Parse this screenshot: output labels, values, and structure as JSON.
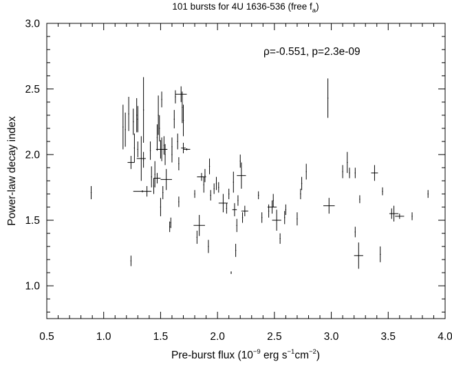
{
  "chart_data": {
    "type": "scatter",
    "title": {
      "main": "101 bursts for 4U 1636-536 (free f",
      "sub": "a",
      "close": ")"
    },
    "xlabel": {
      "pre": "Pre-burst flux (10",
      "sup1": "−9",
      "mid1": " erg s",
      "sup2": "−1",
      "mid2": "cm",
      "sup3": "−2",
      "post": ")"
    },
    "ylabel": "Power-law decay index",
    "annotation": "ρ=-0.551, p=2.3e-09",
    "xlim": [
      0.5,
      4.0
    ],
    "ylim": [
      0.75,
      3.0
    ],
    "x_ticks": [
      "0.5",
      "1.0",
      "1.5",
      "2.0",
      "2.5",
      "3.0",
      "3.5",
      "4.0"
    ],
    "y_ticks": [
      "1.0",
      "1.5",
      "2.0",
      "2.5",
      "3.0"
    ],
    "points": [
      [
        0.89,
        1.71,
        0.0,
        0.05
      ],
      [
        1.17,
        2.21,
        0.0,
        0.17
      ],
      [
        1.19,
        2.19,
        0.0,
        0.13
      ],
      [
        1.22,
        2.31,
        0.0,
        0.13
      ],
      [
        1.24,
        1.94,
        0.03,
        0.05
      ],
      [
        1.24,
        1.19,
        0.0,
        0.04
      ],
      [
        1.26,
        2.25,
        0.0,
        0.1
      ],
      [
        1.27,
        2.05,
        0.0,
        0.11
      ],
      [
        1.29,
        2.3,
        0.0,
        0.13
      ],
      [
        1.3,
        2.27,
        0.0,
        0.1
      ],
      [
        1.3,
        2.04,
        0.0,
        0.06
      ],
      [
        1.33,
        1.97,
        0.04,
        0.17
      ],
      [
        1.35,
        1.96,
        0.0,
        0.06
      ],
      [
        1.34,
        1.72,
        0.08,
        0.0
      ],
      [
        1.35,
        2.34,
        0.0,
        0.25
      ],
      [
        1.38,
        1.72,
        0.0,
        0.04
      ],
      [
        1.41,
        2.03,
        0.0,
        0.07
      ],
      [
        1.42,
        1.83,
        0.0,
        0.08
      ],
      [
        1.44,
        1.76,
        0.0,
        0.06
      ],
      [
        1.45,
        1.85,
        0.0,
        0.1
      ],
      [
        1.47,
        2.13,
        0.0,
        0.1
      ],
      [
        1.47,
        1.82,
        0.03,
        0.04
      ],
      [
        1.48,
        2.3,
        0.0,
        0.15
      ],
      [
        1.49,
        2.2,
        0.0,
        0.1
      ],
      [
        1.5,
        2.04,
        0.0,
        0.07
      ],
      [
        1.5,
        1.6,
        0.0,
        0.07
      ],
      [
        1.51,
        2.04,
        0.05,
        0.09
      ],
      [
        1.51,
        2.42,
        0.0,
        0.06
      ],
      [
        1.52,
        1.71,
        0.0,
        0.05
      ],
      [
        1.53,
        2.07,
        0.0,
        0.07
      ],
      [
        1.54,
        2.0,
        0.0,
        0.08
      ],
      [
        1.55,
        1.81,
        0.05,
        0.08
      ],
      [
        1.58,
        1.45,
        0.0,
        0.04
      ],
      [
        1.59,
        1.48,
        0.0,
        0.04
      ],
      [
        1.6,
        2.06,
        0.0,
        0.07
      ],
      [
        1.6,
        2.0,
        0.0,
        0.06
      ],
      [
        1.62,
        2.27,
        0.0,
        0.07
      ],
      [
        1.63,
        2.44,
        0.0,
        0.05
      ],
      [
        1.65,
        2.1,
        0.0,
        0.06
      ],
      [
        1.66,
        1.93,
        0.0,
        0.05
      ],
      [
        1.66,
        1.64,
        0.0,
        0.04
      ],
      [
        1.68,
        2.46,
        0.05,
        0.06
      ],
      [
        1.69,
        2.36,
        0.0,
        0.12
      ],
      [
        1.7,
        2.26,
        0.0,
        0.12
      ],
      [
        1.7,
        2.05,
        0.02,
        0.04
      ],
      [
        1.73,
        2.04,
        0.03,
        0.0
      ],
      [
        1.8,
        1.7,
        0.0,
        0.03
      ],
      [
        1.82,
        1.37,
        0.0,
        0.05
      ],
      [
        1.84,
        1.46,
        0.05,
        0.08
      ],
      [
        1.86,
        1.83,
        0.04,
        0.03
      ],
      [
        1.88,
        1.77,
        0.0,
        0.06
      ],
      [
        1.89,
        1.84,
        0.0,
        0.05
      ],
      [
        1.92,
        1.3,
        0.0,
        0.05
      ],
      [
        1.93,
        1.91,
        0.0,
        0.06
      ],
      [
        1.94,
        1.69,
        0.0,
        0.04
      ],
      [
        1.97,
        1.74,
        0.0,
        0.04
      ],
      [
        1.99,
        1.78,
        0.0,
        0.05
      ],
      [
        2.01,
        1.75,
        0.0,
        0.04
      ],
      [
        2.05,
        1.63,
        0.04,
        0.07
      ],
      [
        2.08,
        1.59,
        0.0,
        0.04
      ],
      [
        2.1,
        1.7,
        0.0,
        0.04
      ],
      [
        2.12,
        1.1,
        0.0,
        0.01
      ],
      [
        2.14,
        1.79,
        0.0,
        0.08
      ],
      [
        2.15,
        1.58,
        0.02,
        0.05
      ],
      [
        2.16,
        1.27,
        0.0,
        0.05
      ],
      [
        2.17,
        1.46,
        0.0,
        0.05
      ],
      [
        2.18,
        1.65,
        0.0,
        0.04
      ],
      [
        2.2,
        1.95,
        0.0,
        0.05
      ],
      [
        2.21,
        1.84,
        0.04,
        0.1
      ],
      [
        2.22,
        1.52,
        0.0,
        0.04
      ],
      [
        2.24,
        1.57,
        0.03,
        0.04
      ],
      [
        2.36,
        1.69,
        0.0,
        0.03
      ],
      [
        2.39,
        1.52,
        0.0,
        0.04
      ],
      [
        2.45,
        1.57,
        0.0,
        0.05
      ],
      [
        2.48,
        1.6,
        0.04,
        0.05
      ],
      [
        2.49,
        1.65,
        0.0,
        0.05
      ],
      [
        2.52,
        1.5,
        0.04,
        0.08
      ],
      [
        2.55,
        1.36,
        0.0,
        0.04
      ],
      [
        2.59,
        1.52,
        0.0,
        0.05
      ],
      [
        2.6,
        1.58,
        0.0,
        0.04
      ],
      [
        2.7,
        1.51,
        0.0,
        0.05
      ],
      [
        2.73,
        1.7,
        0.0,
        0.04
      ],
      [
        2.74,
        1.78,
        0.0,
        0.05
      ],
      [
        2.78,
        1.87,
        0.0,
        0.06
      ],
      [
        2.97,
        2.43,
        0.0,
        0.15
      ],
      [
        2.98,
        1.61,
        0.05,
        0.06
      ],
      [
        3.1,
        1.87,
        0.0,
        0.05
      ],
      [
        3.14,
        1.94,
        0.0,
        0.08
      ],
      [
        3.16,
        1.86,
        0.0,
        0.04
      ],
      [
        3.21,
        1.41,
        0.0,
        0.04
      ],
      [
        3.21,
        1.86,
        0.0,
        0.04
      ],
      [
        3.24,
        1.23,
        0.04,
        0.1
      ],
      [
        3.25,
        1.66,
        0.0,
        0.03
      ],
      [
        3.38,
        1.86,
        0.03,
        0.06
      ],
      [
        3.43,
        1.24,
        0.0,
        0.06
      ],
      [
        3.45,
        1.72,
        0.0,
        0.03
      ],
      [
        3.53,
        1.55,
        0.0,
        0.04
      ],
      [
        3.55,
        1.55,
        0.04,
        0.06
      ],
      [
        3.6,
        1.53,
        0.04,
        0.02
      ],
      [
        3.71,
        1.53,
        0.0,
        0.03
      ],
      [
        3.85,
        1.7,
        0.0,
        0.03
      ]
    ]
  }
}
